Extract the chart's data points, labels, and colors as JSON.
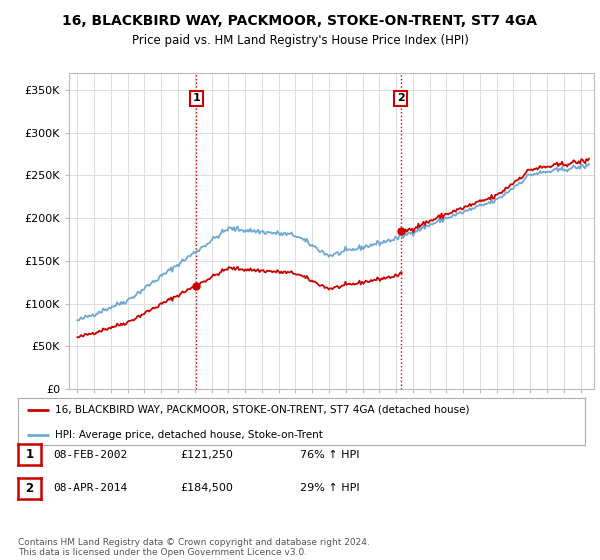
{
  "title": "16, BLACKBIRD WAY, PACKMOOR, STOKE-ON-TRENT, ST7 4GA",
  "subtitle": "Price paid vs. HM Land Registry's House Price Index (HPI)",
  "ylim": [
    0,
    370000
  ],
  "yticks": [
    0,
    50000,
    100000,
    150000,
    200000,
    250000,
    300000,
    350000
  ],
  "ytick_labels": [
    "£0",
    "£50K",
    "£100K",
    "£150K",
    "£200K",
    "£250K",
    "£300K",
    "£350K"
  ],
  "sale1_x": 2002.1,
  "sale1_price": 121250,
  "sale2_x": 2014.27,
  "sale2_price": 184500,
  "legend_line1": "16, BLACKBIRD WAY, PACKMOOR, STOKE-ON-TRENT, ST7 4GA (detached house)",
  "legend_line2": "HPI: Average price, detached house, Stoke-on-Trent",
  "table_row1": [
    "1",
    "08-FEB-2002",
    "£121,250",
    "76% ↑ HPI"
  ],
  "table_row2": [
    "2",
    "08-APR-2014",
    "£184,500",
    "29% ↑ HPI"
  ],
  "footer": "Contains HM Land Registry data © Crown copyright and database right 2024.\nThis data is licensed under the Open Government Licence v3.0.",
  "hpi_color": "#6fa8d4",
  "price_color": "#cc0000",
  "background_color": "#ffffff",
  "grid_color": "#dddddd",
  "xlim_left": 1994.5,
  "xlim_right": 2025.8
}
